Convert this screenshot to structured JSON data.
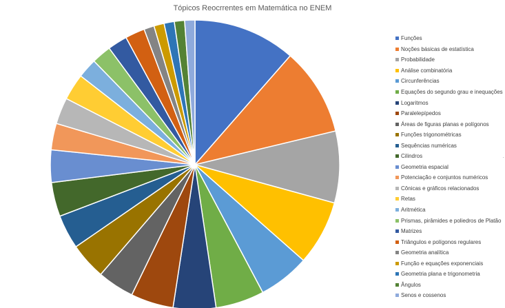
{
  "chart_data": {
    "type": "pie",
    "title": "Tópicos Reocrrentes em Matemática no ENEM",
    "legend_position": "right",
    "categories": [
      "Funções",
      "Noções básicas de estatística",
      "Probabilidade",
      "Análise combinatória",
      "Circunferências",
      "Equações do segundo grau e inequações",
      "Logaritmos",
      "Paralelepípedos",
      "Áreas de figuras planas e polígonos",
      "Funções trigonométricas",
      "Sequências numéricas",
      "Cilindros",
      "Geometria espacial",
      "Potenciação e conjuntos numéricos",
      "Cônicas e gráficos relacionados",
      "Retas",
      "Aritmética",
      "Prismas, pirâmides e poliedros de Platão",
      "Matrizes",
      "Triângulos e polígonos regulares",
      "Geometria analítica",
      "Função e equações exponenciais",
      "Geometria plana e trigonometria",
      "Ângulos",
      "Senos e cossenos"
    ],
    "values": [
      12.0,
      10.3,
      8.4,
      7.6,
      6.0,
      5.7,
      5.0,
      5.0,
      4.3,
      4.3,
      4.0,
      4.0,
      3.8,
      3.1,
      3.1,
      3.1,
      2.3,
      2.3,
      2.3,
      2.3,
      1.2,
      1.2,
      1.2,
      1.2,
      1.2
    ],
    "colors": [
      "#4472C4",
      "#ED7D31",
      "#A5A5A5",
      "#FFC000",
      "#5B9BD5",
      "#70AD47",
      "#264478",
      "#9E480E",
      "#636363",
      "#997300",
      "#255E91",
      "#43682B",
      "#698ED0",
      "#F1975A",
      "#B7B7B7",
      "#FFCD33",
      "#7CAFDD",
      "#8CC168",
      "#335AA1",
      "#D26012",
      "#848484",
      "#CC9A00",
      "#2E75B6",
      "#548235",
      "#8FAADC"
    ]
  },
  "extra": {
    "edge_marker": "."
  }
}
